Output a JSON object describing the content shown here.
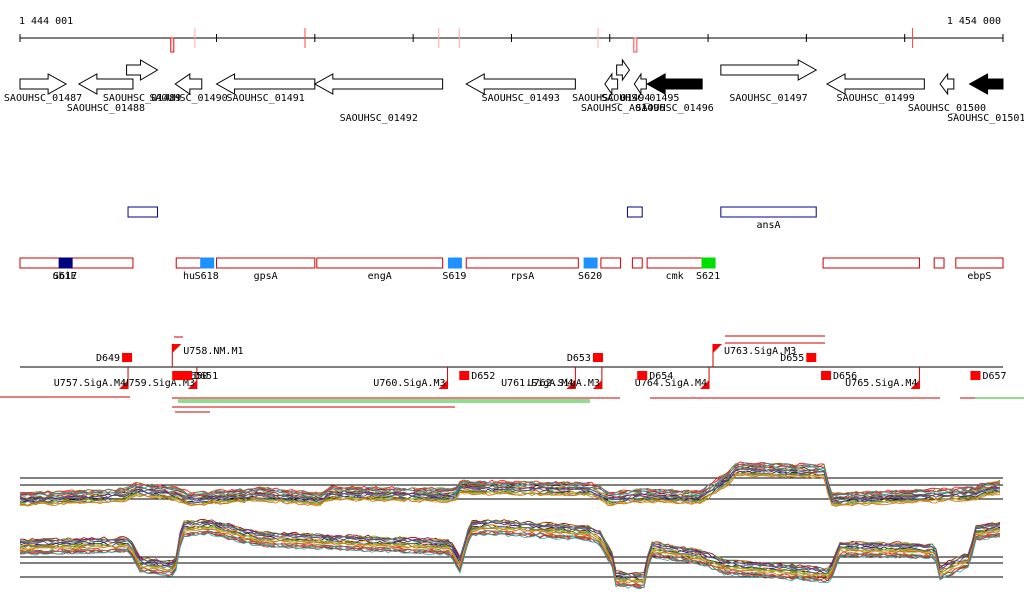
{
  "ruler": {
    "start_label": "1 444 001",
    "end_label": "1 454 000",
    "start": 1444001,
    "end": 1454000
  },
  "genes": [
    {
      "id": "SAOUHSC_01487",
      "label": "SAOUHSC_01487",
      "strand": "+",
      "start": 1444001,
      "end": 1444470
    },
    {
      "id": "SAOUHSC_01488",
      "label": "SAOUHSC_01488",
      "strand": "-",
      "start": 1444600,
      "end": 1445150
    },
    {
      "id": "SAOUHSC_01489",
      "label": "SAOUHSC_01489",
      "strand": "+",
      "start": 1445085,
      "end": 1445400
    },
    {
      "id": "SAOUHSC_01490",
      "label": "SAOUHSC_01490",
      "strand": "-",
      "start": 1445580,
      "end": 1445850
    },
    {
      "id": "SAOUHSC_01491",
      "label": "SAOUHSC_01491",
      "strand": "-",
      "start": 1446000,
      "end": 1447000
    },
    {
      "id": "SAOUHSC_01492",
      "label": "SAOUHSC_01492",
      "strand": "-",
      "start": 1447000,
      "end": 1448300
    },
    {
      "id": "SAOUHSC_01493",
      "label": "SAOUHSC_01493",
      "strand": "-",
      "start": 1448540,
      "end": 1449650
    },
    {
      "id": "SAOUHSC_01494",
      "label": "SAOUHSC_01494",
      "strand": "-",
      "start": 1449950,
      "end": 1450080
    },
    {
      "id": "SAOUHSC_A01496",
      "label": "SAOUHSC_A01496",
      "strand": "+",
      "start": 1450070,
      "end": 1450200
    },
    {
      "id": "SAOUHSC_01495",
      "label": "SAOUHSC_01495",
      "strand": "-",
      "start": 1450250,
      "end": 1450330
    },
    {
      "id": "SAOUHSC_01496",
      "label": "SAOUHSC_01496",
      "strand": "-",
      "start": 1450380,
      "end": 1450940,
      "filled": true
    },
    {
      "id": "SAOUHSC_01497",
      "label": "SAOUHSC_01497",
      "strand": "+",
      "start": 1451130,
      "end": 1452100
    },
    {
      "id": "SAOUHSC_01499",
      "label": "SAOUHSC_01499",
      "strand": "-",
      "start": 1452210,
      "end": 1453200
    },
    {
      "id": "SAOUHSC_01500",
      "label": "SAOUHSC_01500",
      "strand": "-",
      "start": 1453360,
      "end": 1453500
    },
    {
      "id": "SAOUHSC_01501",
      "label": "SAOUHSC_01501",
      "strand": "-",
      "start": 1453660,
      "end": 1454000,
      "filled": true
    }
  ],
  "operon_boxes": [
    {
      "start": 1445100,
      "end": 1445400,
      "label": ""
    },
    {
      "start": 1450180,
      "end": 1450330,
      "label": ""
    },
    {
      "start": 1451130,
      "end": 1452100,
      "label": "ansA"
    }
  ],
  "annotated_features": [
    {
      "start": 1444001,
      "end": 1445150,
      "label": "ubiE"
    },
    {
      "start": 1445590,
      "end": 1445850,
      "label": "hu"
    },
    {
      "start": 1446000,
      "end": 1447000,
      "label": "gpsA"
    },
    {
      "start": 1447020,
      "end": 1448300,
      "label": "engA"
    },
    {
      "start": 1448540,
      "end": 1449680,
      "label": "rpsA"
    },
    {
      "start": 1449910,
      "end": 1450110,
      "label": ""
    },
    {
      "start": 1450230,
      "end": 1450330,
      "label": ""
    },
    {
      "start": 1450380,
      "end": 1450940,
      "label": "cmk"
    },
    {
      "start": 1452170,
      "end": 1453150,
      "label": "",
      "label_hidden": true
    },
    {
      "start": 1453300,
      "end": 1453400,
      "label": ""
    },
    {
      "start": 1453520,
      "end": 1454000,
      "label": "ebpS"
    }
  ],
  "srna_tags": [
    {
      "label": "S617",
      "pos": 1444460,
      "color": "#000080"
    },
    {
      "label": "S618",
      "pos": 1445900,
      "color": "#1e90ff"
    },
    {
      "label": "S619",
      "pos": 1448420,
      "color": "#1e90ff"
    },
    {
      "label": "S620",
      "pos": 1449800,
      "color": "#1e90ff"
    },
    {
      "label": "S621",
      "pos": 1451000,
      "color": "#00dd00"
    }
  ],
  "ruler_ticks_minor": [
    1444001,
    1446000,
    1447000,
    1448000,
    1449000,
    1450000,
    1451000,
    1452000,
    1453000,
    1454000
  ],
  "ruler_marks": [
    {
      "pos": 1445550,
      "color": "#ff0000",
      "kind": "double"
    },
    {
      "pos": 1445780,
      "color": "#ffb0a0"
    },
    {
      "pos": 1446900,
      "color": "#ff4444"
    },
    {
      "pos": 1448260,
      "color": "#ffb0a0"
    },
    {
      "pos": 1448470,
      "color": "#ffb0a0"
    },
    {
      "pos": 1449880,
      "color": "#ffb0a0"
    },
    {
      "pos": 1450260,
      "color": "#ff4444",
      "kind": "double"
    },
    {
      "pos": 1453080,
      "color": "#ff4444"
    }
  ],
  "promoters": [
    {
      "label": "U758.NM.M1",
      "pos": 1445550,
      "side": "up"
    },
    {
      "label": "U763.SigA.M3",
      "pos": 1451050,
      "side": "up"
    },
    {
      "label": "U757.SigA.M4",
      "pos": 1445100,
      "side": "down"
    },
    {
      "label": "U759.SigA.M3",
      "pos": 1445800,
      "side": "down"
    },
    {
      "label": "U760.SigA.M3",
      "pos": 1448350,
      "side": "down"
    },
    {
      "label": "U761.SigA.M4",
      "pos": 1449650,
      "side": "down"
    },
    {
      "label": "U762.SigA.M3",
      "pos": 1449920,
      "side": "down"
    },
    {
      "label": "U764.SigA.M4",
      "pos": 1451010,
      "side": "down"
    },
    {
      "label": "U765.SigA.M4",
      "pos": 1453150,
      "side": "down"
    }
  ],
  "terminators": [
    {
      "label": "D649",
      "pos": 1445090,
      "side": "up"
    },
    {
      "label": "D653",
      "pos": 1449880,
      "side": "up"
    },
    {
      "label": "D655",
      "pos": 1452050,
      "side": "up"
    },
    {
      "label": "D650",
      "pos": 1445600,
      "side": "down"
    },
    {
      "label": "D651",
      "pos": 1445700,
      "side": "down"
    },
    {
      "label": "D652",
      "pos": 1448520,
      "side": "down"
    },
    {
      "label": "D654",
      "pos": 1450330,
      "side": "down"
    },
    {
      "label": "D656",
      "pos": 1452200,
      "side": "down"
    },
    {
      "label": "D657",
      "pos": 1453720,
      "side": "down"
    }
  ]
}
